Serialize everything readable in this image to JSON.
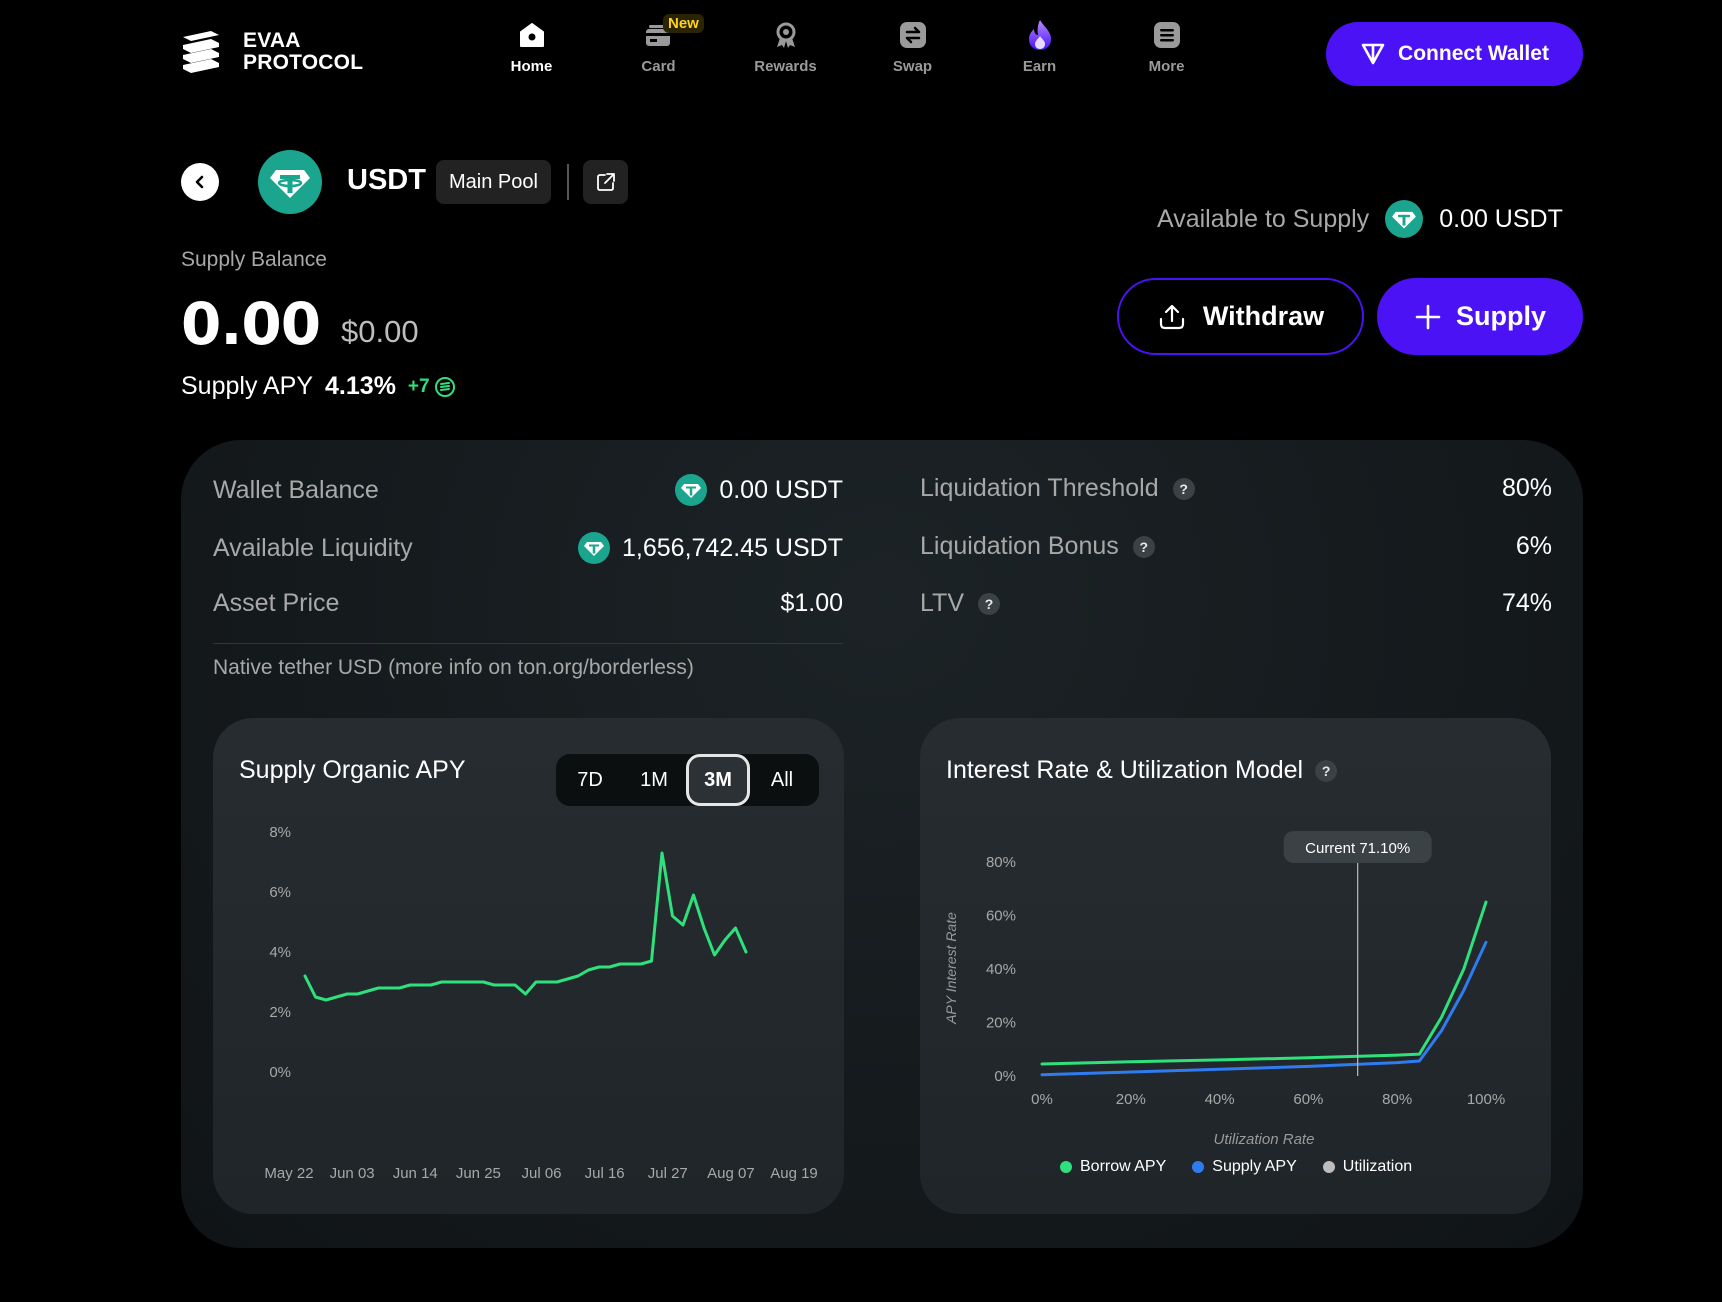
{
  "header": {
    "logo_line1": "EVAA",
    "logo_line2": "PROTOCOL",
    "nav": [
      {
        "label": "Home",
        "icon": "home-icon",
        "active": true
      },
      {
        "label": "Card",
        "icon": "card-icon",
        "badge": "New"
      },
      {
        "label": "Rewards",
        "icon": "rewards-icon"
      },
      {
        "label": "Swap",
        "icon": "swap-icon"
      },
      {
        "label": "Earn",
        "icon": "flame-icon"
      },
      {
        "label": "More",
        "icon": "menu-icon"
      }
    ],
    "connect_wallet": "Connect Wallet"
  },
  "asset": {
    "symbol": "USDT",
    "pool": "Main Pool",
    "supply_balance_label": "Supply Balance",
    "supply_balance": "0.00",
    "supply_balance_usd": "$0.00",
    "supply_apy_label": "Supply APY",
    "supply_apy": "4.13%",
    "reward": "+7",
    "available_to_supply_label": "Available to Supply",
    "available_to_supply": "0.00 USDT",
    "withdraw_label": "Withdraw",
    "supply_label": "Supply"
  },
  "details": {
    "wallet_balance_label": "Wallet Balance",
    "wallet_balance": "0.00 USDT",
    "available_liquidity_label": "Available Liquidity",
    "available_liquidity": "1,656,742.45 USDT",
    "asset_price_label": "Asset Price",
    "asset_price": "$1.00",
    "liq_threshold_label": "Liquidation Threshold",
    "liq_threshold": "80%",
    "liq_bonus_label": "Liquidation Bonus",
    "liq_bonus": "6%",
    "ltv_label": "LTV",
    "ltv": "74%",
    "description": "Native tether USD (more info on ton.org/borderless)"
  },
  "colors": {
    "accent": "#4a12f5",
    "tether": "#1ba58f",
    "borrow": "#2fe07c",
    "supply": "#2f7bf0",
    "utilization": "#bdbdbd"
  },
  "chart_data": [
    {
      "type": "line",
      "title": "Supply Organic APY",
      "timeframes": [
        "7D",
        "1M",
        "3M",
        "All"
      ],
      "selected_timeframe": "3M",
      "y_ticks": [
        "8%",
        "6%",
        "4%",
        "2%",
        "0%"
      ],
      "ylim": [
        0,
        8
      ],
      "x_ticks": [
        "May 22",
        "Jun 03",
        "Jun 14",
        "Jun 25",
        "Jul 06",
        "Jul 16",
        "Jul 27",
        "Aug 07",
        "Aug 19"
      ],
      "series": [
        {
          "values": [
            3.2,
            2.5,
            2.4,
            2.5,
            2.6,
            2.6,
            2.7,
            2.8,
            2.8,
            2.8,
            2.9,
            2.9,
            2.9,
            3.0,
            3.0,
            3.0,
            3.0,
            3.0,
            2.9,
            2.9,
            2.9,
            2.6,
            3.0,
            3.0,
            3.0,
            3.1,
            3.2,
            3.4,
            3.5,
            3.5,
            3.6,
            3.6,
            3.6,
            3.7,
            7.3,
            5.2,
            4.9,
            5.9,
            4.8,
            3.9,
            4.4,
            4.8,
            4.0
          ]
        }
      ]
    },
    {
      "type": "line",
      "title": "Interest Rate & Utilization Model",
      "xlabel": "Utilization Rate",
      "ylabel": "APY Interest Rate",
      "x_ticks": [
        "0%",
        "20%",
        "40%",
        "60%",
        "80%",
        "100%"
      ],
      "y_ticks": [
        "80%",
        "60%",
        "40%",
        "20%",
        "0%"
      ],
      "xlim": [
        0,
        100
      ],
      "ylim": [
        0,
        80
      ],
      "current_label": "Current 71.10%",
      "current_utilization": 71.1,
      "series": [
        {
          "name": "Borrow APY",
          "x": [
            0,
            20,
            40,
            60,
            80,
            85,
            90,
            95,
            100
          ],
          "y": [
            4.5,
            5.3,
            6.0,
            6.8,
            7.8,
            8.2,
            22,
            40,
            65
          ]
        },
        {
          "name": "Supply APY",
          "x": [
            0,
            20,
            40,
            60,
            80,
            85,
            90,
            95,
            100
          ],
          "y": [
            0.5,
            1.5,
            2.5,
            3.6,
            5.0,
            5.6,
            17,
            32,
            50
          ]
        }
      ],
      "legend": [
        "Borrow APY",
        "Supply APY",
        "Utilization"
      ]
    }
  ]
}
